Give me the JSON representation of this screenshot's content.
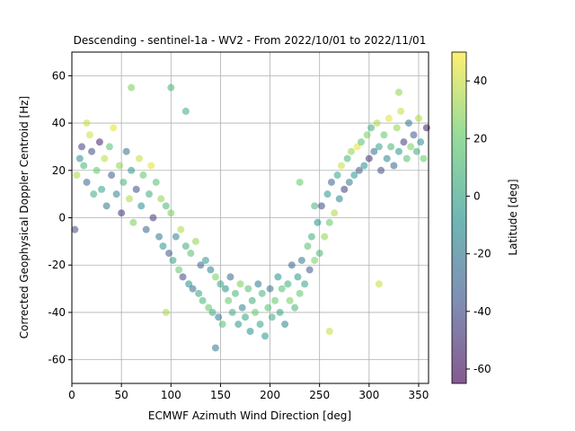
{
  "chart_data": {
    "type": "scatter",
    "title": "Descending - sentinel-1a - WV2 - From 2022/10/01 to 2022/11/01",
    "xlabel": "ECMWF Azimuth Wind Direction [deg]",
    "ylabel": "Corrected Geophysical Doppler Centroid [Hz]",
    "xlim": [
      0,
      360
    ],
    "ylim": [
      -70,
      70
    ],
    "xticks": [
      0,
      50,
      100,
      150,
      200,
      250,
      300,
      350
    ],
    "yticks": [
      -60,
      -40,
      -20,
      0,
      20,
      40,
      60
    ],
    "grid": true,
    "colorbar": {
      "label": "Latitude [deg]",
      "range": [
        -65,
        50
      ],
      "ticks": [
        -60,
        -40,
        -20,
        0,
        20,
        40
      ],
      "colormap": "viridis"
    },
    "marker_alpha": 0.55,
    "points": [
      [
        5,
        18,
        35
      ],
      [
        8,
        25,
        -10
      ],
      [
        10,
        30,
        -45
      ],
      [
        12,
        22,
        10
      ],
      [
        15,
        15,
        -30
      ],
      [
        18,
        35,
        42
      ],
      [
        20,
        28,
        -40
      ],
      [
        22,
        10,
        5
      ],
      [
        25,
        20,
        20
      ],
      [
        28,
        32,
        -55
      ],
      [
        30,
        12,
        0
      ],
      [
        33,
        25,
        38
      ],
      [
        35,
        5,
        -20
      ],
      [
        38,
        30,
        15
      ],
      [
        40,
        18,
        -35
      ],
      [
        42,
        38,
        45
      ],
      [
        45,
        10,
        -15
      ],
      [
        48,
        22,
        30
      ],
      [
        50,
        2,
        -50
      ],
      [
        52,
        15,
        10
      ],
      [
        55,
        28,
        -25
      ],
      [
        58,
        8,
        35
      ],
      [
        60,
        20,
        -5
      ],
      [
        62,
        -2,
        25
      ],
      [
        65,
        12,
        -40
      ],
      [
        68,
        25,
        40
      ],
      [
        70,
        5,
        -10
      ],
      [
        72,
        18,
        20
      ],
      [
        75,
        -5,
        -30
      ],
      [
        78,
        10,
        5
      ],
      [
        80,
        22,
        45
      ],
      [
        82,
        0,
        -45
      ],
      [
        85,
        15,
        15
      ],
      [
        88,
        -8,
        -20
      ],
      [
        90,
        8,
        30
      ],
      [
        92,
        -12,
        -5
      ],
      [
        95,
        5,
        10
      ],
      [
        98,
        -15,
        -35
      ],
      [
        100,
        2,
        25
      ],
      [
        102,
        -18,
        0
      ],
      [
        105,
        -8,
        -15
      ],
      [
        108,
        -22,
        20
      ],
      [
        110,
        -5,
        35
      ],
      [
        112,
        -25,
        -40
      ],
      [
        115,
        -12,
        5
      ],
      [
        118,
        -28,
        -10
      ],
      [
        120,
        -15,
        15
      ],
      [
        122,
        -30,
        -25
      ],
      [
        125,
        -10,
        30
      ],
      [
        128,
        -32,
        0
      ],
      [
        130,
        -20,
        -30
      ],
      [
        132,
        -35,
        10
      ],
      [
        135,
        -18,
        -5
      ],
      [
        138,
        -38,
        20
      ],
      [
        140,
        -22,
        -15
      ],
      [
        142,
        -40,
        5
      ],
      [
        145,
        -25,
        25
      ],
      [
        148,
        -42,
        -20
      ],
      [
        150,
        -28,
        0
      ],
      [
        152,
        -45,
        15
      ],
      [
        155,
        -30,
        -10
      ],
      [
        158,
        -35,
        20
      ],
      [
        160,
        -25,
        -30
      ],
      [
        162,
        -40,
        5
      ],
      [
        165,
        -32,
        10
      ],
      [
        168,
        -45,
        -5
      ],
      [
        170,
        -28,
        25
      ],
      [
        172,
        -38,
        -15
      ],
      [
        175,
        -42,
        0
      ],
      [
        178,
        -30,
        15
      ],
      [
        180,
        -48,
        -10
      ],
      [
        182,
        -35,
        5
      ],
      [
        185,
        -40,
        20
      ],
      [
        188,
        -28,
        -20
      ],
      [
        190,
        -45,
        0
      ],
      [
        192,
        -32,
        10
      ],
      [
        195,
        -50,
        -5
      ],
      [
        198,
        -38,
        15
      ],
      [
        200,
        -30,
        -25
      ],
      [
        202,
        -42,
        5
      ],
      [
        205,
        -35,
        20
      ],
      [
        208,
        -25,
        -10
      ],
      [
        210,
        -40,
        0
      ],
      [
        212,
        -30,
        15
      ],
      [
        215,
        -45,
        -15
      ],
      [
        218,
        -28,
        5
      ],
      [
        220,
        -35,
        25
      ],
      [
        222,
        -20,
        -30
      ],
      [
        225,
        -38,
        10
      ],
      [
        228,
        -25,
        -5
      ],
      [
        230,
        -32,
        20
      ],
      [
        232,
        -18,
        -20
      ],
      [
        235,
        -28,
        0
      ],
      [
        238,
        -12,
        15
      ],
      [
        240,
        -22,
        -35
      ],
      [
        242,
        -8,
        5
      ],
      [
        245,
        -18,
        25
      ],
      [
        248,
        -2,
        -10
      ],
      [
        250,
        -15,
        10
      ],
      [
        252,
        5,
        -40
      ],
      [
        255,
        -8,
        30
      ],
      [
        258,
        10,
        -5
      ],
      [
        260,
        -2,
        20
      ],
      [
        262,
        15,
        -30
      ],
      [
        265,
        2,
        35
      ],
      [
        268,
        18,
        0
      ],
      [
        270,
        8,
        -15
      ],
      [
        272,
        22,
        40
      ],
      [
        275,
        12,
        -45
      ],
      [
        278,
        25,
        10
      ],
      [
        280,
        15,
        -20
      ],
      [
        282,
        28,
        30
      ],
      [
        285,
        18,
        -5
      ],
      [
        288,
        30,
        45
      ],
      [
        290,
        20,
        -35
      ],
      [
        292,
        32,
        15
      ],
      [
        295,
        22,
        -10
      ],
      [
        298,
        35,
        25
      ],
      [
        300,
        25,
        -50
      ],
      [
        302,
        38,
        5
      ],
      [
        305,
        28,
        -25
      ],
      [
        308,
        40,
        35
      ],
      [
        310,
        30,
        0
      ],
      [
        312,
        20,
        -40
      ],
      [
        315,
        35,
        20
      ],
      [
        318,
        25,
        -15
      ],
      [
        320,
        42,
        45
      ],
      [
        322,
        30,
        10
      ],
      [
        325,
        22,
        -30
      ],
      [
        328,
        38,
        30
      ],
      [
        330,
        28,
        -5
      ],
      [
        332,
        45,
        40
      ],
      [
        335,
        32,
        -45
      ],
      [
        338,
        25,
        15
      ],
      [
        340,
        40,
        -20
      ],
      [
        342,
        30,
        25
      ],
      [
        345,
        35,
        -35
      ],
      [
        348,
        28,
        5
      ],
      [
        350,
        42,
        35
      ],
      [
        352,
        32,
        -10
      ],
      [
        355,
        25,
        20
      ],
      [
        358,
        38,
        -55
      ],
      [
        3,
        -5,
        -40
      ],
      [
        15,
        40,
        40
      ],
      [
        60,
        55,
        25
      ],
      [
        100,
        55,
        10
      ],
      [
        115,
        45,
        5
      ],
      [
        230,
        15,
        20
      ],
      [
        245,
        5,
        10
      ],
      [
        330,
        53,
        30
      ],
      [
        310,
        -28,
        40
      ],
      [
        260,
        -48,
        40
      ],
      [
        145,
        -55,
        -20
      ],
      [
        95,
        -40,
        35
      ]
    ]
  }
}
